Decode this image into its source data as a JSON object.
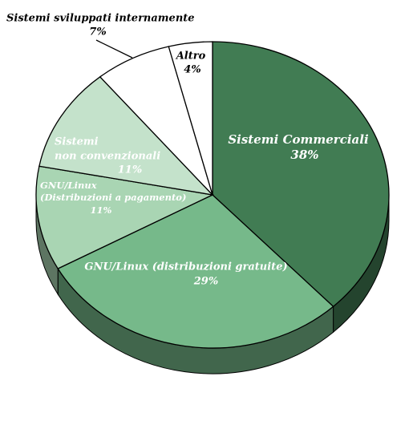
{
  "chart_data": {
    "type": "pie",
    "categories": [
      [
        "Sistemi Commerciali"
      ],
      [
        "GNU/Linux (distribuzioni gratuite)"
      ],
      [
        "GNU/Linux",
        "(Distribuzioni a pagamento)"
      ],
      [
        "Sistemi",
        "non convenzionali"
      ],
      [
        "Sistemi sviluppati internamente"
      ],
      [
        "Altro"
      ]
    ],
    "values": [
      38,
      29,
      11,
      11,
      7,
      4
    ],
    "value_labels": [
      "38%",
      "29%",
      "11%",
      "11%",
      "7%",
      "4%"
    ],
    "colors": [
      "#417c53",
      "#76b98a",
      "#a9d5b3",
      "#c4e2cb",
      "#ffffff",
      "#ffffff"
    ]
  }
}
